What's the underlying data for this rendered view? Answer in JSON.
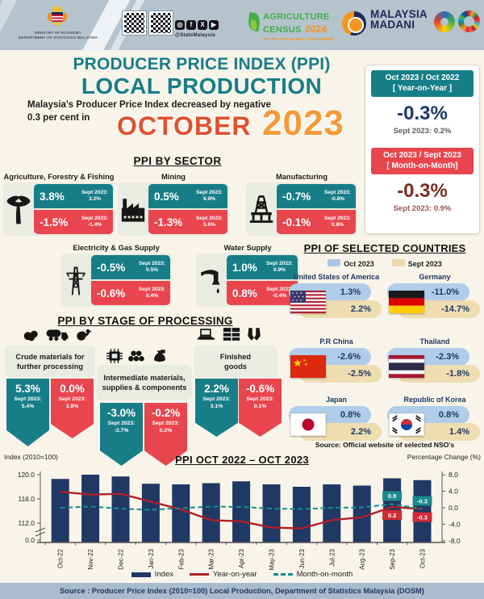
{
  "colors": {
    "teal": "#177e88",
    "red": "#e8454e",
    "navy": "#1f3864",
    "maroon": "#7b2d26",
    "orange_year": "#f49a38",
    "red_month": "#e0512f",
    "pill_oct": "#b0cde9",
    "pill_sept": "#efddb2",
    "bar": "#1f3864",
    "line_yoy": "#b01f27",
    "line_mom": "#1a8a8f",
    "banner": "#b5c3cd",
    "card": "#e9ece3"
  },
  "header": {
    "ministry": {
      "line1": "MINISTRY OF ECONOMY",
      "line2": "DEPARTMENT OF STATISTICS MALAYSIA"
    },
    "social_handle": "@StatsMalaysia",
    "agri": {
      "line1": "AGRICULTURE",
      "line2": "CENSUS",
      "year": "2024",
      "tagline": "KEY TO AGRICULTURAL DEVELOPMENT"
    },
    "madani": {
      "line1": "MALAYSIA",
      "line2": "MADANI"
    }
  },
  "title": {
    "heading1": "PRODUCER PRICE INDEX (PPI)",
    "heading2": "LOCAL PRODUCTION",
    "subtitle1": "Malaysia's Producer Price Index decreased by negative",
    "subtitle2": "0.3 per cent in",
    "month": "OCTOBER",
    "year": "2023"
  },
  "summary": {
    "yoy": {
      "period": "Oct 2023 / Oct 2022",
      "label": "[ Year-on-Year ]",
      "value": "-0.3%",
      "prev": "Sept 2023: 0.2%"
    },
    "mom": {
      "period": "Oct 2023 / Sept 2023",
      "label": "[ Month-on-Month]",
      "value": "-0.3%",
      "prev": "Sept 2023: 0.9%"
    }
  },
  "sectors": {
    "heading": "PPI BY SECTOR",
    "prev_label": "Sept 2023:",
    "items": [
      {
        "name": "Agriculture, Forestry & Fishing",
        "icon": "palm-tree",
        "yoy": "3.8%",
        "yoy_prev": "3.2%",
        "mom": "-1.5%",
        "mom_prev": "-1.4%"
      },
      {
        "name": "Mining",
        "icon": "factory",
        "yoy": "0.5%",
        "yoy_prev": "6.9%",
        "mom": "-1.3%",
        "mom_prev": "5.6%"
      },
      {
        "name": "Manufacturing",
        "icon": "oil-platform",
        "yoy": "-0.7%",
        "yoy_prev": "-0.8%",
        "mom": "-0.1%",
        "mom_prev": "0.8%"
      },
      {
        "name": "Electricity & Gas Supply",
        "icon": "transmission-tower",
        "yoy": "-0.5%",
        "yoy_prev": "0.5%",
        "mom": "-0.6%",
        "mom_prev": "0.4%"
      },
      {
        "name": "Water Supply",
        "icon": "water-tap",
        "yoy": "1.0%",
        "yoy_prev": "0.9%",
        "mom": "0.8%",
        "mom_prev": "-0.4%"
      }
    ]
  },
  "countries": {
    "heading": "PPI OF SELECTED COUNTRIES",
    "legend": [
      {
        "label": "Oct 2023"
      },
      {
        "label": "Sept 2023"
      }
    ],
    "items": [
      {
        "name": "United States of America",
        "flag": "united-states",
        "oct": "1.3%",
        "sept": "2.2%"
      },
      {
        "name": "Germany",
        "flag": "germany",
        "oct": "-11.0%",
        "sept": "-14.7%"
      },
      {
        "name": "P.R China",
        "flag": "china",
        "oct": "-2.6%",
        "sept": "-2.5%"
      },
      {
        "name": "Thailand",
        "flag": "thailand",
        "oct": "-2.3%",
        "sept": "-1.8%"
      },
      {
        "name": "Japan",
        "flag": "japan",
        "oct": "0.8%",
        "sept": "2.2%"
      },
      {
        "name": "Republic of Korea",
        "flag": "south-korea",
        "oct": "0.8%",
        "sept": "1.4%"
      }
    ],
    "source": "Source: Official website of selected NSO's"
  },
  "stages": {
    "heading": "PPI BY STAGE OF PROCESSING",
    "prev_label": "Sept 2023:",
    "items": [
      {
        "name_line1": "Crude materials for",
        "name_line2": "further processing",
        "yoy": "5.3%",
        "yoy_prev": "5.4%",
        "mom": "0.0%",
        "mom_prev": "3.9%"
      },
      {
        "name_line1": "Intermediate materials,",
        "name_line2": "supplies & components",
        "yoy": "-3.0%",
        "yoy_prev": "-2.7%",
        "mom": "-0.2%",
        "mom_prev": "0.2%"
      },
      {
        "name_line1": "Finished",
        "name_line2": "goods",
        "yoy": "2.2%",
        "yoy_prev": "3.1%",
        "mom": "-0.6%",
        "mom_prev": "0.1%"
      }
    ]
  },
  "chart": {
    "title": "PPI OCT 2022 – OCT 2023",
    "left_axis_label": "Index (2010=100)",
    "right_axis_label": "Percentage Change (%)",
    "legend": [
      "Index",
      "Year-on-year",
      "Month-on-month"
    ]
  },
  "chart_data": {
    "type": "combo-bar-line",
    "title": "PPI OCT 2022 – OCT 2023",
    "categories": [
      "Oct-22",
      "Nov-22",
      "Dec-22",
      "Jan-23",
      "Feb-23",
      "Mar-23",
      "Apr-23",
      "May-23",
      "Jun-23",
      "Jul-23",
      "Aug-23",
      "Sep-23",
      "Oct-23"
    ],
    "series": [
      {
        "name": "Index",
        "type": "bar",
        "axis": "left",
        "color": "#1f3864",
        "values": [
          119.3,
          120.0,
          119.7,
          118.5,
          118.4,
          118.6,
          118.9,
          118.4,
          118.0,
          118.4,
          118.2,
          119.4,
          119.1
        ]
      },
      {
        "name": "Year-on-year",
        "type": "line",
        "axis": "right",
        "color": "#b01f27",
        "values": [
          3.9,
          3.2,
          3.4,
          1.5,
          -0.4,
          -3.0,
          -3.3,
          -4.8,
          -5.0,
          -3.0,
          -2.3,
          0.2,
          -0.3
        ]
      },
      {
        "name": "Month-on-month",
        "type": "line-dashed",
        "axis": "right",
        "color": "#1a8a8f",
        "values": [
          0.0,
          0.3,
          -0.2,
          -0.5,
          -0.1,
          0.3,
          0.2,
          -0.2,
          -0.3,
          0.0,
          0.1,
          0.9,
          -0.3
        ]
      }
    ],
    "point_labels": [
      {
        "series": "Month-on-month",
        "category": "Sep-23",
        "text": "0.9"
      },
      {
        "series": "Year-on-year",
        "category": "Sep-23",
        "text": "0.2"
      },
      {
        "series": "Month-on-month",
        "category": "Oct-23",
        "text": "-0.3"
      },
      {
        "series": "Year-on-year",
        "category": "Oct-23",
        "text": "-0.3"
      }
    ],
    "left_axis": {
      "label": "Index (2010=100)",
      "ticks": [
        "120.0",
        "116.0",
        "112.0",
        "0.0"
      ],
      "axis_break": true
    },
    "right_axis": {
      "label": "Percentage Change (%)",
      "ticks": [
        "8.0",
        "4.0",
        "0.0",
        "-4.0",
        "-8.0"
      ]
    },
    "grid": false,
    "legend_position": "bottom"
  },
  "footer": {
    "source": "Source : Producer Price Index (2010=100) Local Production, Department of Statistics Malaysia (DOSM)"
  }
}
